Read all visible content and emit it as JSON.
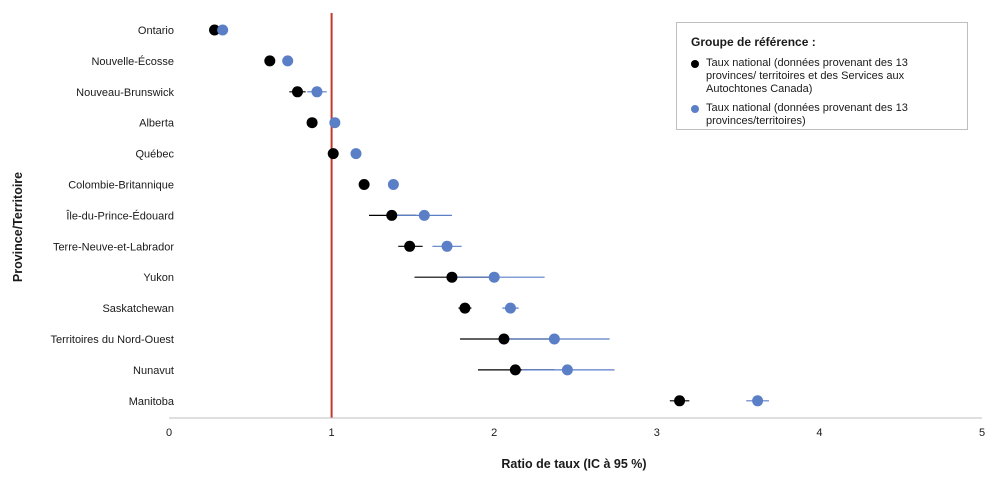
{
  "chart_data": {
    "type": "scatter",
    "title": "",
    "xlabel": "Ratio de taux (IC à 95 %)",
    "ylabel": "Province/Territoire",
    "xlim": [
      0,
      5
    ],
    "xticks": [
      "0",
      "1",
      "2",
      "3",
      "4",
      "5"
    ],
    "reference_line": 1,
    "categories": [
      "Ontario",
      "Nouvelle-Écosse",
      "Nouveau-Brunswick",
      "Alberta",
      "Québec",
      "Colombie-Britannique",
      "Île-du-Prince-Édouard",
      "Terre-Neuve-et-Labrador",
      "Yukon",
      "Saskatchewan",
      "Territoires du Nord-Ouest",
      "Nunavut",
      "Manitoba"
    ],
    "series": [
      {
        "name": "Taux national (données provenant des 13 provinces/ territoires et des Services aux Autochtones Canada)",
        "color": "#000000",
        "values": [
          0.28,
          0.62,
          0.79,
          0.88,
          1.01,
          1.2,
          1.37,
          1.48,
          1.74,
          1.82,
          2.06,
          2.13,
          3.14
        ],
        "lower": [
          0.26,
          0.6,
          0.74,
          0.86,
          0.99,
          1.18,
          1.23,
          1.41,
          1.51,
          1.78,
          1.79,
          1.9,
          3.08
        ],
        "upper": [
          0.3,
          0.64,
          0.84,
          0.9,
          1.03,
          1.22,
          1.52,
          1.56,
          1.97,
          1.86,
          2.34,
          2.37,
          3.2
        ]
      },
      {
        "name": "Taux national (données provenant des 13 provinces/territoires)",
        "color": "#5b7fc7",
        "values": [
          0.33,
          0.73,
          0.91,
          1.02,
          1.15,
          1.38,
          1.57,
          1.71,
          2.0,
          2.1,
          2.37,
          2.45,
          3.62
        ],
        "lower": [
          0.31,
          0.7,
          0.85,
          1.0,
          1.13,
          1.36,
          1.37,
          1.62,
          1.72,
          2.05,
          2.03,
          2.17,
          3.55
        ],
        "upper": [
          0.35,
          0.76,
          0.97,
          1.04,
          1.17,
          1.4,
          1.74,
          1.8,
          2.31,
          2.15,
          2.71,
          2.74,
          3.69
        ]
      }
    ]
  },
  "legend": {
    "title": "Groupe de référence :",
    "items": [
      {
        "label": "Taux national (données provenant des 13 provinces/ territoires et des Services aux Autochtones Canada)",
        "color": "#000000"
      },
      {
        "label": "Taux national (données provenant des 13 provinces/territoires)",
        "color": "#5b7fc7"
      }
    ]
  },
  "colors": {
    "reference_line": "#c0392b",
    "axis": "#bfbfbf"
  }
}
